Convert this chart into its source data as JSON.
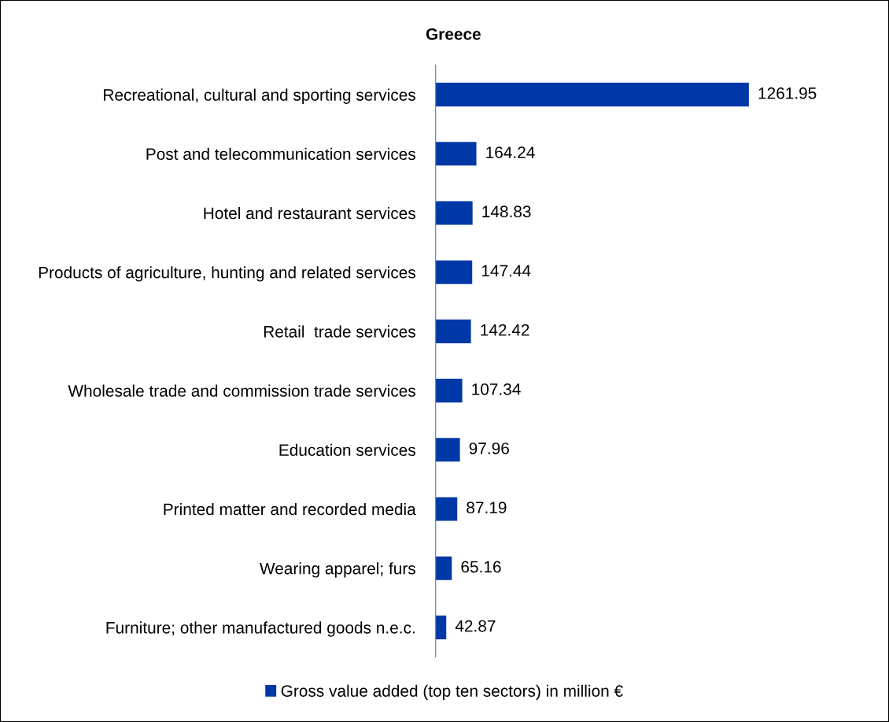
{
  "chart_data": {
    "type": "bar",
    "orientation": "horizontal",
    "title": "Greece",
    "categories": [
      "Recreational, cultural and sporting services",
      "Post and telecommunication services",
      "Hotel and restaurant services",
      "Products of agriculture, hunting and related services",
      "Retail  trade services",
      "Wholesale trade and commission trade services",
      "Education services",
      "Printed matter and recorded media",
      "Wearing apparel; furs",
      "Furniture; other manufactured goods n.e.c."
    ],
    "series": [
      {
        "name": "Gross value added (top ten sectors) in million €",
        "color": "#0038a8",
        "values": [
          1261.95,
          164.24,
          148.83,
          147.44,
          142.42,
          107.34,
          97.96,
          87.19,
          65.16,
          42.87
        ]
      }
    ],
    "data_labels": true,
    "legend": "bottom",
    "grid": false
  }
}
